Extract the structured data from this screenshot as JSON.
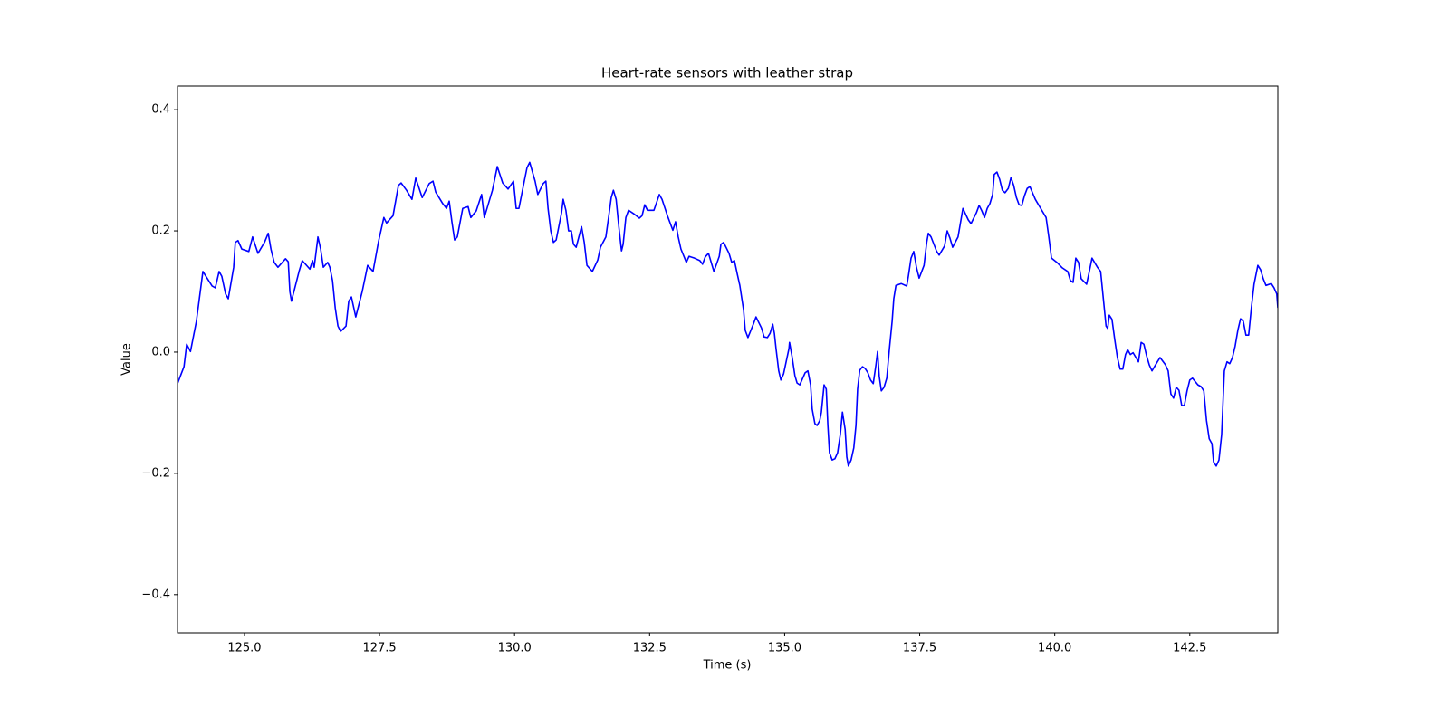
{
  "chart_data": {
    "type": "line",
    "title": "Heart-rate sensors with leather strap",
    "xlabel": "Time (s)",
    "ylabel": "Value",
    "color": "#0000ff",
    "xlim": [
      123.76,
      144.13
    ],
    "ylim": [
      -0.463,
      0.439
    ],
    "xticks": [
      {
        "value": 125,
        "label": "125.0"
      },
      {
        "value": 127.5,
        "label": "127.5"
      },
      {
        "value": 130,
        "label": "130.0"
      },
      {
        "value": 132.5,
        "label": "132.5"
      },
      {
        "value": 135,
        "label": "135.0"
      },
      {
        "value": 137.5,
        "label": "137.5"
      },
      {
        "value": 140,
        "label": "140.0"
      },
      {
        "value": 142.5,
        "label": "142.5"
      }
    ],
    "yticks": [
      {
        "value": -0.4,
        "label": "−0.4"
      },
      {
        "value": -0.2,
        "label": "−0.2"
      },
      {
        "value": 0,
        "label": "0.0"
      },
      0.2,
      0.4
    ],
    "x": [
      123.76,
      123.88,
      123.93,
      124.0,
      124.11,
      124.23,
      124.4,
      124.46,
      124.53,
      124.58,
      124.65,
      124.7,
      124.8,
      124.83,
      124.88,
      124.95,
      125.08,
      125.15,
      125.25,
      125.37,
      125.44,
      125.49,
      125.55,
      125.62,
      125.76,
      125.81,
      125.84,
      125.87,
      126.01,
      126.07,
      126.21,
      126.26,
      126.29,
      126.36,
      126.41,
      126.46,
      126.54,
      126.58,
      126.63,
      126.68,
      126.73,
      126.78,
      126.88,
      126.93,
      126.98,
      127.06,
      127.18,
      127.28,
      127.38,
      127.48,
      127.58,
      127.63,
      127.75,
      127.85,
      127.9,
      128.0,
      128.1,
      128.17,
      128.29,
      128.42,
      128.49,
      128.54,
      128.67,
      128.74,
      128.79,
      128.84,
      128.89,
      128.94,
      129.04,
      129.14,
      129.19,
      129.29,
      129.39,
      129.44,
      129.59,
      129.68,
      129.78,
      129.88,
      129.98,
      130.03,
      130.08,
      130.18,
      130.23,
      130.28,
      130.38,
      130.43,
      130.53,
      130.58,
      130.62,
      130.67,
      130.72,
      130.77,
      130.87,
      130.9,
      130.95,
      131.0,
      131.05,
      131.09,
      131.14,
      131.24,
      131.29,
      131.34,
      131.44,
      131.54,
      131.59,
      131.69,
      131.74,
      131.79,
      131.83,
      131.88,
      131.93,
      131.98,
      132.01,
      132.06,
      132.11,
      132.21,
      132.31,
      132.36,
      132.41,
      132.46,
      132.58,
      132.68,
      132.73,
      132.83,
      132.93,
      132.98,
      133.03,
      133.08,
      133.18,
      133.23,
      133.33,
      133.43,
      133.48,
      133.53,
      133.59,
      133.69,
      133.79,
      133.82,
      133.87,
      133.97,
      134.02,
      134.07,
      134.12,
      134.17,
      134.24,
      134.27,
      134.32,
      134.42,
      134.47,
      134.57,
      134.62,
      134.68,
      134.73,
      134.78,
      134.81,
      134.84,
      134.89,
      134.93,
      134.98,
      135.08,
      135.09,
      135.14,
      135.19,
      135.23,
      135.28,
      135.38,
      135.43,
      135.48,
      135.51,
      135.56,
      135.6,
      135.65,
      135.68,
      135.73,
      135.77,
      135.8,
      135.83,
      135.88,
      135.93,
      135.98,
      136.03,
      136.07,
      136.12,
      136.15,
      136.18,
      136.23,
      136.28,
      136.32,
      136.35,
      136.39,
      136.44,
      136.49,
      136.54,
      136.59,
      136.64,
      136.69,
      136.72,
      136.75,
      136.79,
      136.84,
      136.89,
      136.94,
      136.99,
      137.02,
      137.06,
      137.16,
      137.26,
      137.29,
      137.34,
      137.39,
      137.44,
      137.49,
      137.58,
      137.63,
      137.66,
      137.71,
      137.81,
      137.86,
      137.96,
      138.01,
      138.06,
      138.11,
      138.21,
      138.26,
      138.3,
      138.4,
      138.45,
      138.55,
      138.6,
      138.65,
      138.7,
      138.75,
      138.8,
      138.85,
      138.88,
      138.93,
      138.98,
      139.03,
      139.08,
      139.14,
      139.19,
      139.24,
      139.29,
      139.34,
      139.39,
      139.44,
      139.49,
      139.54,
      139.64,
      139.74,
      139.84,
      139.89,
      139.94,
      140.04,
      140.14,
      140.24,
      140.29,
      140.34,
      140.39,
      140.44,
      140.49,
      140.59,
      140.64,
      140.69,
      140.79,
      140.85,
      140.9,
      140.95,
      140.98,
      141.01,
      141.06,
      141.11,
      141.16,
      141.21,
      141.26,
      141.31,
      141.35,
      141.4,
      141.45,
      141.55,
      141.6,
      141.65,
      141.7,
      141.75,
      141.8,
      141.9,
      141.95,
      142.05,
      142.1,
      142.15,
      142.2,
      142.25,
      142.3,
      142.35,
      142.4,
      142.45,
      142.5,
      142.55,
      142.65,
      142.71,
      142.76,
      142.81,
      142.86,
      142.91,
      142.94,
      142.99,
      143.04,
      143.09,
      143.14,
      143.19,
      143.24,
      143.29,
      143.34,
      143.39,
      143.44,
      143.49,
      143.54,
      143.59,
      143.64,
      143.69,
      143.76,
      143.81,
      143.86,
      143.91,
      144.01,
      144.06,
      144.11,
      144.13
    ],
    "values": [
      -0.052,
      -0.024,
      0.013,
      0.001,
      0.051,
      0.133,
      0.109,
      0.106,
      0.133,
      0.125,
      0.096,
      0.088,
      0.14,
      0.181,
      0.184,
      0.17,
      0.166,
      0.19,
      0.163,
      0.181,
      0.196,
      0.17,
      0.148,
      0.14,
      0.154,
      0.149,
      0.1,
      0.084,
      0.133,
      0.151,
      0.137,
      0.151,
      0.14,
      0.19,
      0.17,
      0.14,
      0.148,
      0.14,
      0.118,
      0.073,
      0.043,
      0.034,
      0.043,
      0.084,
      0.091,
      0.058,
      0.1,
      0.143,
      0.133,
      0.182,
      0.222,
      0.213,
      0.225,
      0.275,
      0.279,
      0.267,
      0.252,
      0.287,
      0.255,
      0.278,
      0.282,
      0.264,
      0.245,
      0.237,
      0.249,
      0.215,
      0.185,
      0.19,
      0.237,
      0.24,
      0.222,
      0.233,
      0.26,
      0.222,
      0.267,
      0.306,
      0.279,
      0.269,
      0.282,
      0.237,
      0.237,
      0.282,
      0.304,
      0.313,
      0.282,
      0.26,
      0.278,
      0.282,
      0.237,
      0.2,
      0.181,
      0.185,
      0.23,
      0.252,
      0.234,
      0.2,
      0.2,
      0.178,
      0.173,
      0.207,
      0.181,
      0.143,
      0.133,
      0.152,
      0.173,
      0.19,
      0.222,
      0.255,
      0.267,
      0.252,
      0.207,
      0.167,
      0.178,
      0.222,
      0.234,
      0.228,
      0.221,
      0.225,
      0.243,
      0.234,
      0.234,
      0.26,
      0.252,
      0.225,
      0.201,
      0.215,
      0.19,
      0.17,
      0.148,
      0.158,
      0.155,
      0.151,
      0.145,
      0.157,
      0.163,
      0.133,
      0.158,
      0.178,
      0.181,
      0.163,
      0.148,
      0.151,
      0.13,
      0.11,
      0.069,
      0.036,
      0.024,
      0.046,
      0.058,
      0.04,
      0.025,
      0.024,
      0.031,
      0.046,
      0.031,
      0.006,
      -0.031,
      -0.046,
      -0.036,
      0.006,
      0.016,
      -0.009,
      -0.039,
      -0.051,
      -0.054,
      -0.034,
      -0.031,
      -0.054,
      -0.094,
      -0.118,
      -0.121,
      -0.113,
      -0.099,
      -0.054,
      -0.061,
      -0.121,
      -0.166,
      -0.178,
      -0.176,
      -0.166,
      -0.136,
      -0.099,
      -0.128,
      -0.173,
      -0.188,
      -0.178,
      -0.158,
      -0.121,
      -0.061,
      -0.03,
      -0.024,
      -0.027,
      -0.034,
      -0.046,
      -0.052,
      -0.021,
      0.001,
      -0.039,
      -0.064,
      -0.058,
      -0.043,
      0.006,
      0.051,
      0.088,
      0.11,
      0.113,
      0.109,
      0.125,
      0.155,
      0.166,
      0.14,
      0.122,
      0.143,
      0.181,
      0.196,
      0.19,
      0.167,
      0.16,
      0.175,
      0.2,
      0.188,
      0.173,
      0.19,
      0.216,
      0.237,
      0.218,
      0.212,
      0.23,
      0.242,
      0.233,
      0.222,
      0.237,
      0.245,
      0.26,
      0.293,
      0.297,
      0.285,
      0.267,
      0.263,
      0.27,
      0.288,
      0.275,
      0.255,
      0.243,
      0.242,
      0.258,
      0.27,
      0.273,
      0.252,
      0.237,
      0.222,
      0.19,
      0.155,
      0.148,
      0.139,
      0.133,
      0.118,
      0.115,
      0.155,
      0.148,
      0.121,
      0.112,
      0.133,
      0.155,
      0.14,
      0.133,
      0.088,
      0.043,
      0.039,
      0.061,
      0.054,
      0.021,
      -0.009,
      -0.028,
      -0.028,
      -0.004,
      0.004,
      -0.004,
      -0.001,
      -0.016,
      0.016,
      0.013,
      -0.006,
      -0.021,
      -0.031,
      -0.016,
      -0.009,
      -0.021,
      -0.031,
      -0.069,
      -0.076,
      -0.058,
      -0.063,
      -0.088,
      -0.088,
      -0.064,
      -0.046,
      -0.043,
      -0.054,
      -0.057,
      -0.064,
      -0.113,
      -0.143,
      -0.151,
      -0.181,
      -0.188,
      -0.178,
      -0.136,
      -0.031,
      -0.016,
      -0.019,
      -0.009,
      0.01,
      0.036,
      0.055,
      0.051,
      0.028,
      0.028,
      0.073,
      0.112,
      0.143,
      0.136,
      0.121,
      0.11,
      0.113,
      0.106,
      0.096,
      0.073
    ]
  }
}
